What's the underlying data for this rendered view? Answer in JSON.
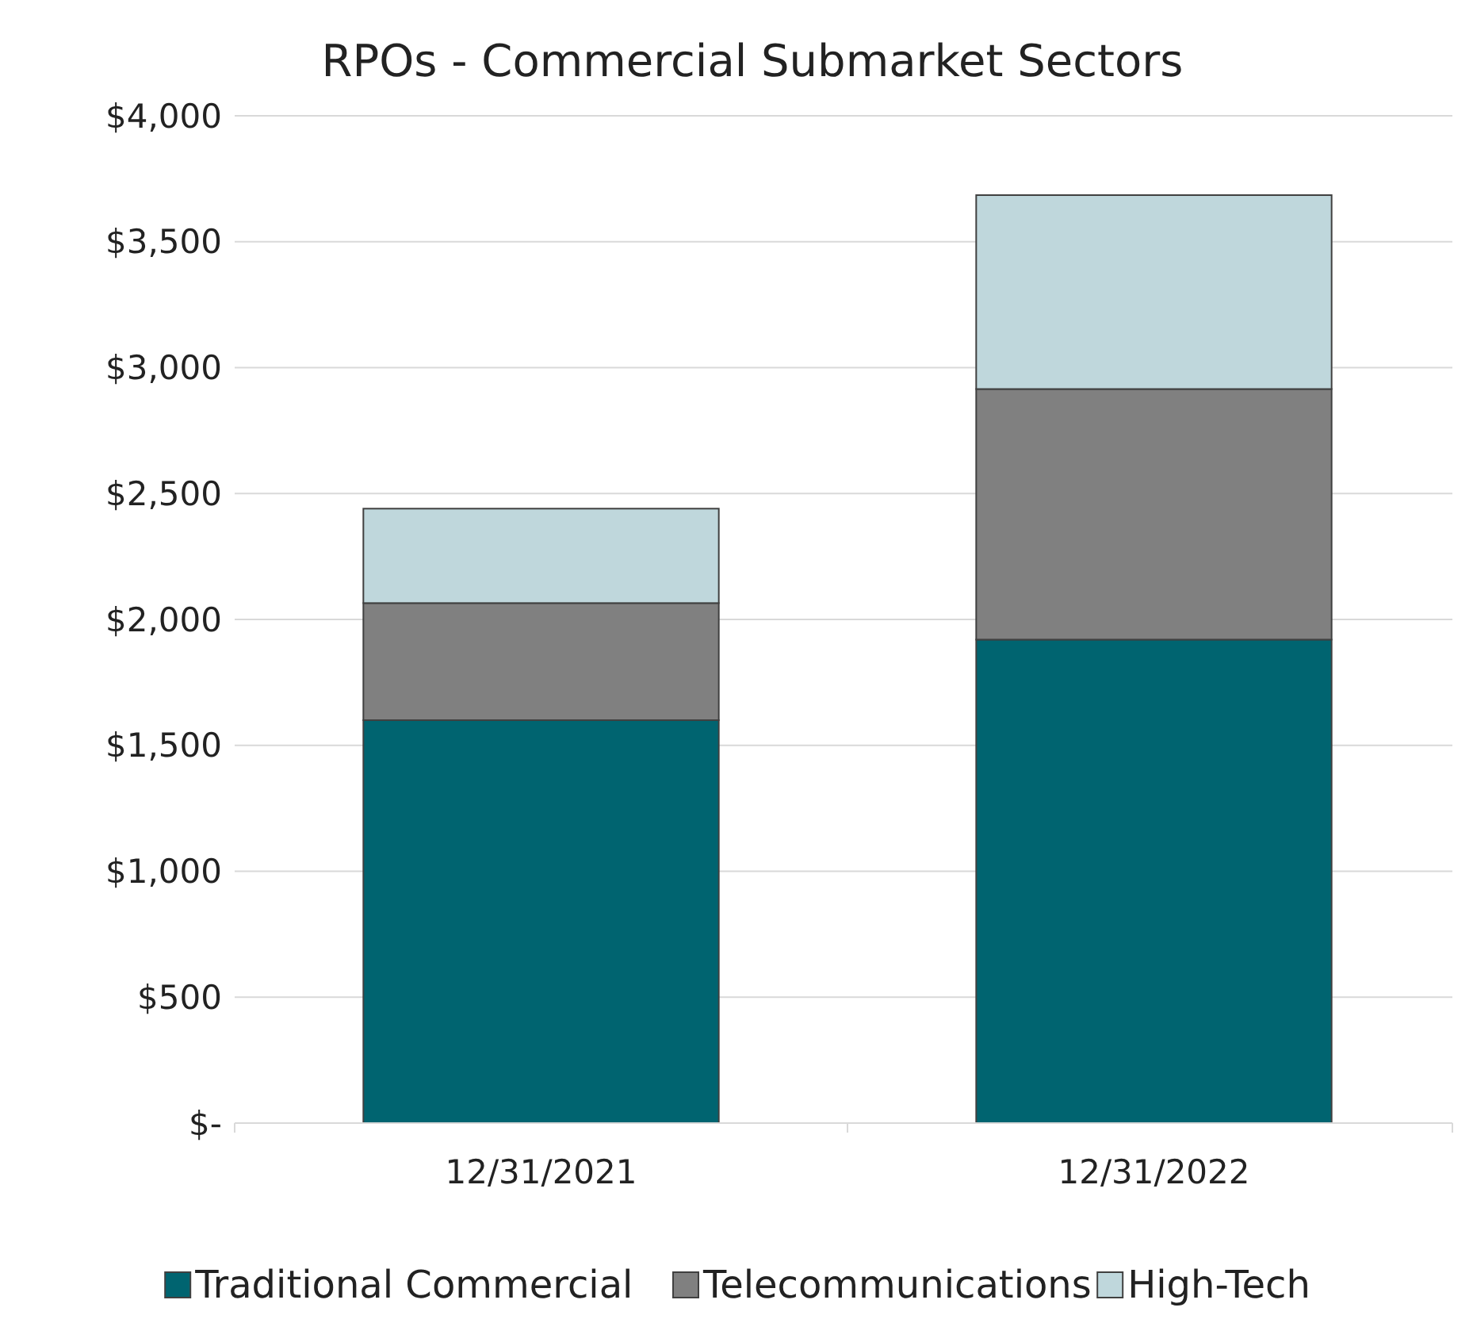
{
  "chart_data": {
    "type": "bar",
    "title": "RPOs - Commercial Submarket Sectors",
    "categories": [
      "12/31/2021",
      "12/31/2022"
    ],
    "stacked": true,
    "series": [
      {
        "name": "Traditional Commercial",
        "color": "#006470",
        "values": [
          1600,
          1920
        ]
      },
      {
        "name": "Telecommunications",
        "color": "#808080",
        "values": [
          465,
          995
        ]
      },
      {
        "name": "High-Tech",
        "color": "#bfd7dc",
        "values": [
          375,
          770
        ]
      }
    ],
    "ylim": [
      0,
      4000
    ],
    "yticks": [
      {
        "value": 0,
        "label": "$-"
      },
      {
        "value": 500,
        "label": "$500"
      },
      {
        "value": 1000,
        "label": "$1,000"
      },
      {
        "value": 1500,
        "label": "$1,500"
      },
      {
        "value": 2000,
        "label": "$2,000"
      },
      {
        "value": 2500,
        "label": "$2,500"
      },
      {
        "value": 3000,
        "label": "$3,000"
      },
      {
        "value": 3500,
        "label": "$3,500"
      },
      {
        "value": 4000,
        "label": "$4,000"
      }
    ],
    "grid": "y",
    "legend": "bottom"
  }
}
